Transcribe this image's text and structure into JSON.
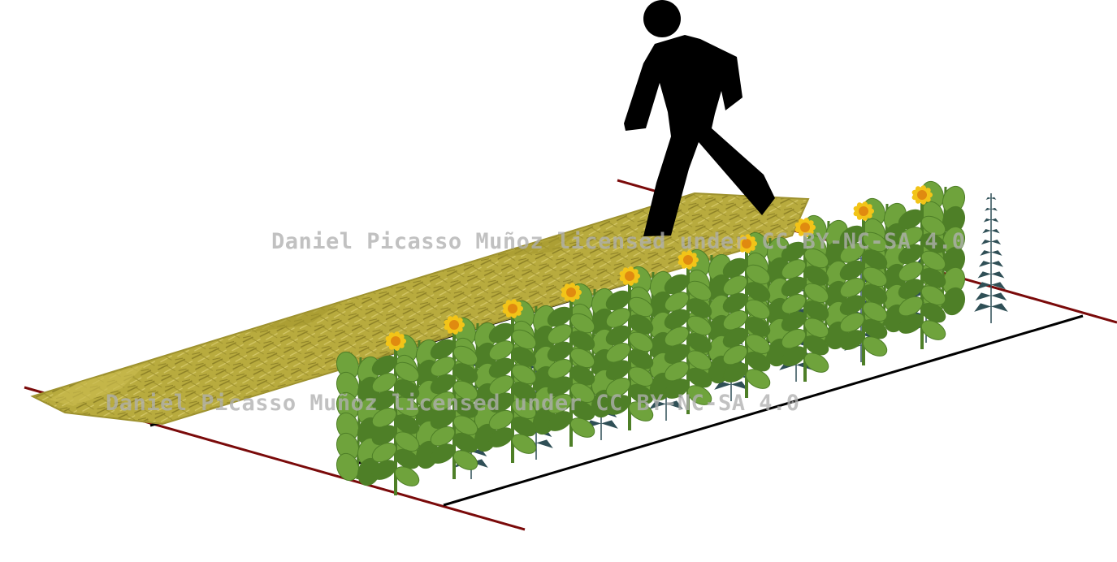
{
  "diagram": {
    "subject": "bed-layout",
    "elements": [
      {
        "name": "walking-person-icon",
        "kind": "pictogram"
      },
      {
        "name": "straw-mulch-path",
        "kind": "path"
      },
      {
        "name": "planting-bed",
        "kind": "bed"
      },
      {
        "name": "sunflower-plant",
        "kind": "plant"
      },
      {
        "name": "bean-plant",
        "kind": "plant"
      },
      {
        "name": "blue-herb-plant",
        "kind": "plant"
      }
    ],
    "colors": {
      "mulch": "#b8ab3e",
      "mulch_dark": "#8c8026",
      "foliage": "#6fa33c",
      "foliage_dark": "#4e7f27",
      "petal": "#f2c418",
      "flower_center": "#e08a10",
      "herb": "#2f4f56",
      "border_line": "#7a0a0a",
      "edge_line": "#000000",
      "figure": "#000000"
    }
  },
  "watermarks": [
    {
      "text": "Daniel Picasso Muñoz licensed under CC BY-NC-SA 4.0"
    },
    {
      "text": "Daniel Picasso Muñoz licensed under CC BY-NC-SA 4.0"
    }
  ]
}
